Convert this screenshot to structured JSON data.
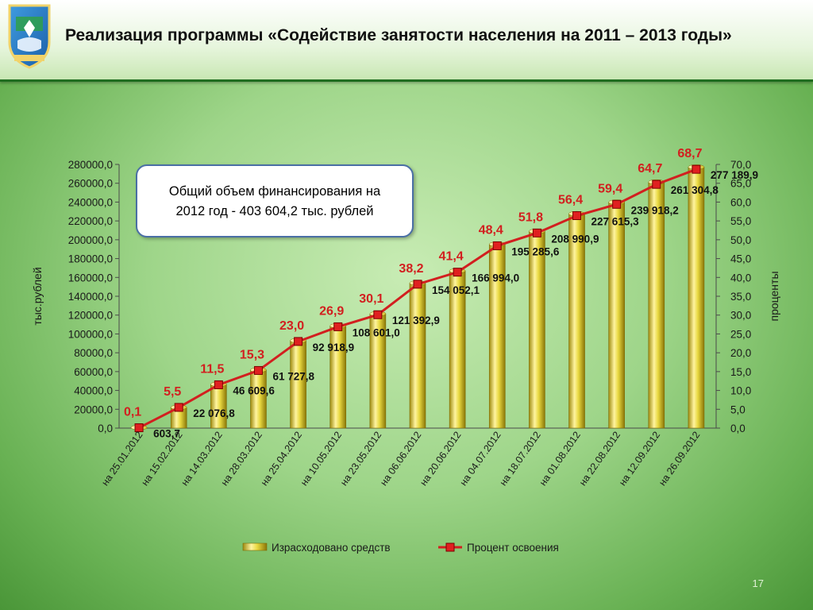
{
  "header": {
    "title": "Реализация программы «Содействие занятости населения на 2011 – 2013 годы»"
  },
  "note": {
    "line1": "Общий объем финансирования на",
    "line2": "2012 год - 403 604,2 тыс. рублей"
  },
  "page_number": "17",
  "chart_data": {
    "type": "bar",
    "categories": [
      "на 25.01.2012",
      "на 15.02.2012",
      "на 14.03.2012",
      "на 28.03.2012",
      "на 25.04.2012",
      "на 10.05.2012",
      "на 23.05.2012",
      "на 06.06.2012",
      "на 20.06.2012",
      "на 04.07.2012",
      "на 18.07.2012",
      "на 01.08.2012",
      "на 22.08.2012",
      "на 12.09.2012",
      "на 26.09.2012"
    ],
    "series": [
      {
        "name": "Израсходовано средств",
        "type": "bar",
        "axis": "left",
        "values": [
          603.7,
          22076.8,
          46609.6,
          61727.8,
          92918.9,
          108601.0,
          121392.9,
          154052.1,
          166994.0,
          195285.6,
          208990.9,
          227615.3,
          239918.2,
          261304.8,
          277189.9
        ],
        "labels": [
          "603,7",
          "22 076,8",
          "46 609,6",
          "61 727,8",
          "92 918,9",
          "108 601,0",
          "121 392,9",
          "154 052,1",
          "166 994,0",
          "195 285,6",
          "208 990,9",
          "227 615,3",
          "239 918,2",
          "261 304,8",
          "277 189,9"
        ]
      },
      {
        "name": "Процент освоения",
        "type": "line",
        "axis": "right",
        "values": [
          0.1,
          5.5,
          11.5,
          15.3,
          23.0,
          26.9,
          30.1,
          38.2,
          41.4,
          48.4,
          51.8,
          56.4,
          59.4,
          64.7,
          68.7
        ],
        "labels": [
          "0,1",
          "5,5",
          "11,5",
          "15,3",
          "23,0",
          "26,9",
          "30,1",
          "38,2",
          "41,4",
          "48,4",
          "51,8",
          "56,4",
          "59,4",
          "64,7",
          "68,7"
        ]
      }
    ],
    "ylabel": "тыс.рублей",
    "ylabel_right": "проценты",
    "ylim": [
      0,
      280000
    ],
    "ylim_right": [
      0,
      70
    ],
    "yticks": [
      "0,0",
      "20000,0",
      "40000,0",
      "60000,0",
      "80000,0",
      "100000,0",
      "120000,0",
      "140000,0",
      "160000,0",
      "180000,0",
      "200000,0",
      "220000,0",
      "240000,0",
      "260000,0",
      "280000,0"
    ],
    "yticks_right": [
      "0,0",
      "5,0",
      "10,0",
      "15,0",
      "20,0",
      "25,0",
      "30,0",
      "35,0",
      "40,0",
      "45,0",
      "50,0",
      "55,0",
      "60,0",
      "65,0",
      "70,0"
    ],
    "legend_position": "bottom",
    "colors": {
      "bar": "#e8d840",
      "line": "#d21f1f",
      "percent_label": "#d21f1f",
      "text": "#111111"
    }
  }
}
